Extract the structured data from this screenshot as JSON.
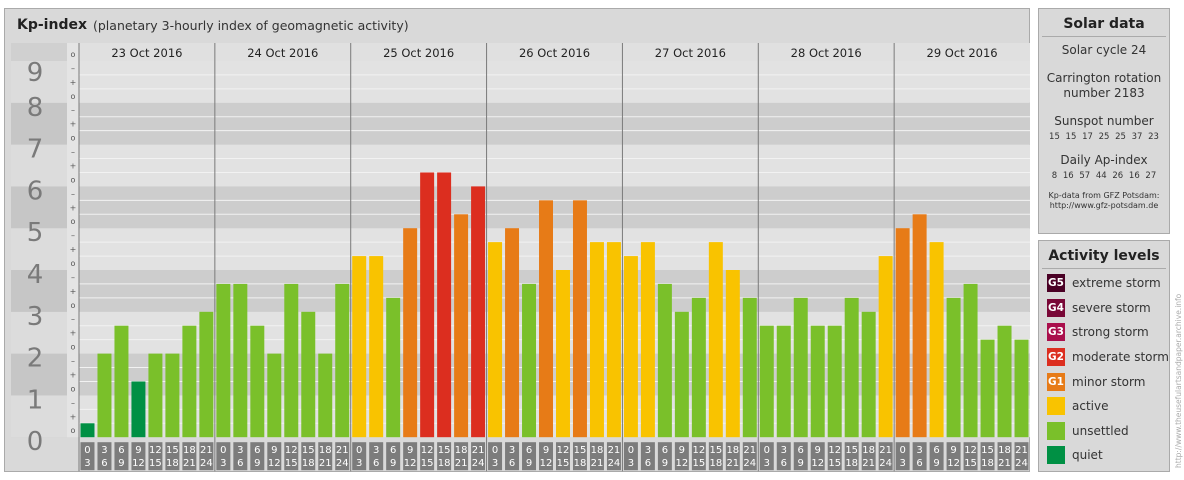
{
  "header": {
    "title": "Kp-index",
    "subtitle": "(planetary 3-hourly index of geomagnetic activity)"
  },
  "chart_data": {
    "type": "bar",
    "title": "Kp-index",
    "subtitle": "(planetary 3-hourly index of geomagnetic activity)",
    "xlabel": "",
    "ylabel": "",
    "ylim": [
      0,
      9
    ],
    "y_ticks": [
      "0",
      "1",
      "2",
      "3",
      "4",
      "5",
      "6",
      "7",
      "8",
      "9"
    ],
    "y_minor_marks": [
      "+",
      "o",
      "–"
    ],
    "days": [
      "23 Oct 2016",
      "24 Oct 2016",
      "25 Oct 2016",
      "26 Oct 2016",
      "27 Oct 2016",
      "28 Oct 2016",
      "29 Oct 2016"
    ],
    "interval_starts": [
      "0",
      "3",
      "6",
      "9",
      "12",
      "15",
      "18",
      "21"
    ],
    "interval_ends": [
      "3",
      "6",
      "9",
      "12",
      "15",
      "18",
      "21",
      "24"
    ],
    "values": [
      [
        0.333,
        2.0,
        2.667,
        1.333,
        2.0,
        2.0,
        2.667,
        3.0
      ],
      [
        3.667,
        3.667,
        2.667,
        2.0,
        3.667,
        3.0,
        2.0,
        3.667
      ],
      [
        4.333,
        4.333,
        3.333,
        5.0,
        6.333,
        6.333,
        5.333,
        6.0
      ],
      [
        4.667,
        5.0,
        3.667,
        5.667,
        4.0,
        5.667,
        4.667,
        4.667
      ],
      [
        4.333,
        4.667,
        3.667,
        3.0,
        3.333,
        4.667,
        4.0,
        3.333
      ],
      [
        2.667,
        2.667,
        3.333,
        2.667,
        2.667,
        3.333,
        3.0,
        4.333
      ],
      [
        5.0,
        5.333,
        4.667,
        3.333,
        3.667,
        2.333,
        2.667,
        2.333
      ]
    ],
    "color_scale": {
      "quiet": "#009044",
      "unsettled": "#7ac02a",
      "active": "#f9c300",
      "minor_storm": "#e77b17",
      "moderate_storm": "#dc2e1f",
      "strong_storm": "#aa0f4c",
      "severe_storm": "#790837",
      "extreme_storm": "#4a0125"
    },
    "grid": true,
    "legend_position": "right"
  },
  "solar": {
    "title": "Solar data",
    "cycle": "Solar cycle 24",
    "carrington_line1": "Carrington rotation",
    "carrington_line2": "number 2183",
    "sunspot_title": "Sunspot number",
    "sunspot_values": "15 15 17 25 25 37 23",
    "ap_title": "Daily Ap-index",
    "ap_values": "8 16 57 44 26 16 27",
    "credit_line1": "Kp-data from GFZ Potsdam:",
    "credit_line2": "http://www.gfz-potsdam.de"
  },
  "activity": {
    "title": "Activity levels",
    "items": [
      {
        "badge": "G5",
        "label": "extreme storm",
        "color": "#4a0125"
      },
      {
        "badge": "G4",
        "label": "severe storm",
        "color": "#790837"
      },
      {
        "badge": "G3",
        "label": "strong storm",
        "color": "#aa0f4c"
      },
      {
        "badge": "G2",
        "label": "moderate storm",
        "color": "#dc2e1f"
      },
      {
        "badge": "G1",
        "label": "minor storm",
        "color": "#e77b17"
      },
      {
        "badge": "",
        "label": "active",
        "color": "#f9c300"
      },
      {
        "badge": "",
        "label": "unsettled",
        "color": "#7ac02a"
      },
      {
        "badge": "",
        "label": "quiet",
        "color": "#009044"
      }
    ]
  },
  "footer": {
    "vertical_credit": "http://www.theusefulartsandpaper.archive.info"
  }
}
